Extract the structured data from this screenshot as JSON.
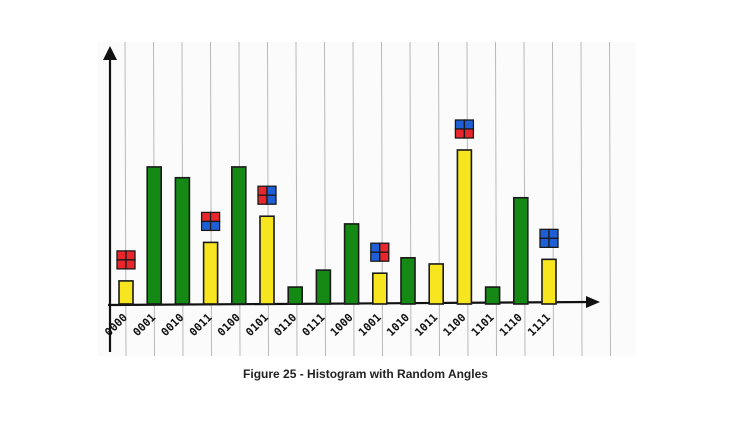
{
  "caption": "Figure 25 -  Histogram with Random Angles",
  "chart_data": {
    "type": "bar",
    "title": "",
    "xlabel": "",
    "ylabel": "",
    "ylim": [
      0,
      1
    ],
    "categories": [
      "0000",
      "0001",
      "0010",
      "0011",
      "0100",
      "0101",
      "0110",
      "0111",
      "1000",
      "1001",
      "1010",
      "1011",
      "1100",
      "1101",
      "1110",
      "1111"
    ],
    "values": [
      0.15,
      0.89,
      0.82,
      0.4,
      0.89,
      0.57,
      0.11,
      0.22,
      0.52,
      0.2,
      0.3,
      0.26,
      1.0,
      0.11,
      0.69,
      0.29
    ],
    "bar_colors": [
      "#f6e51f",
      "#148a14",
      "#148a14",
      "#f6e51f",
      "#148a14",
      "#f6e51f",
      "#148a14",
      "#148a14",
      "#148a14",
      "#f6e51f",
      "#148a14",
      "#f6e51f",
      "#f6e51f",
      "#148a14",
      "#148a14",
      "#f6e51f"
    ],
    "markers": [
      {
        "category": "0000",
        "cells": [
          "red",
          "red",
          "red",
          "red"
        ]
      },
      {
        "category": "0011",
        "cells": [
          "red",
          "red",
          "blue",
          "blue"
        ]
      },
      {
        "category": "0101",
        "cells": [
          "red",
          "blue",
          "red",
          "blue"
        ]
      },
      {
        "category": "1001",
        "cells": [
          "blue",
          "red",
          "blue",
          "red"
        ]
      },
      {
        "category": "1100",
        "cells": [
          "blue",
          "blue",
          "red",
          "red"
        ]
      },
      {
        "category": "1111",
        "cells": [
          "blue",
          "blue",
          "blue",
          "blue"
        ]
      }
    ],
    "colors": {
      "yellow": "#f6e51f",
      "green": "#148a14",
      "red": "#e8262b",
      "blue": "#1f5fd6",
      "outline": "#1a1a1a"
    }
  }
}
